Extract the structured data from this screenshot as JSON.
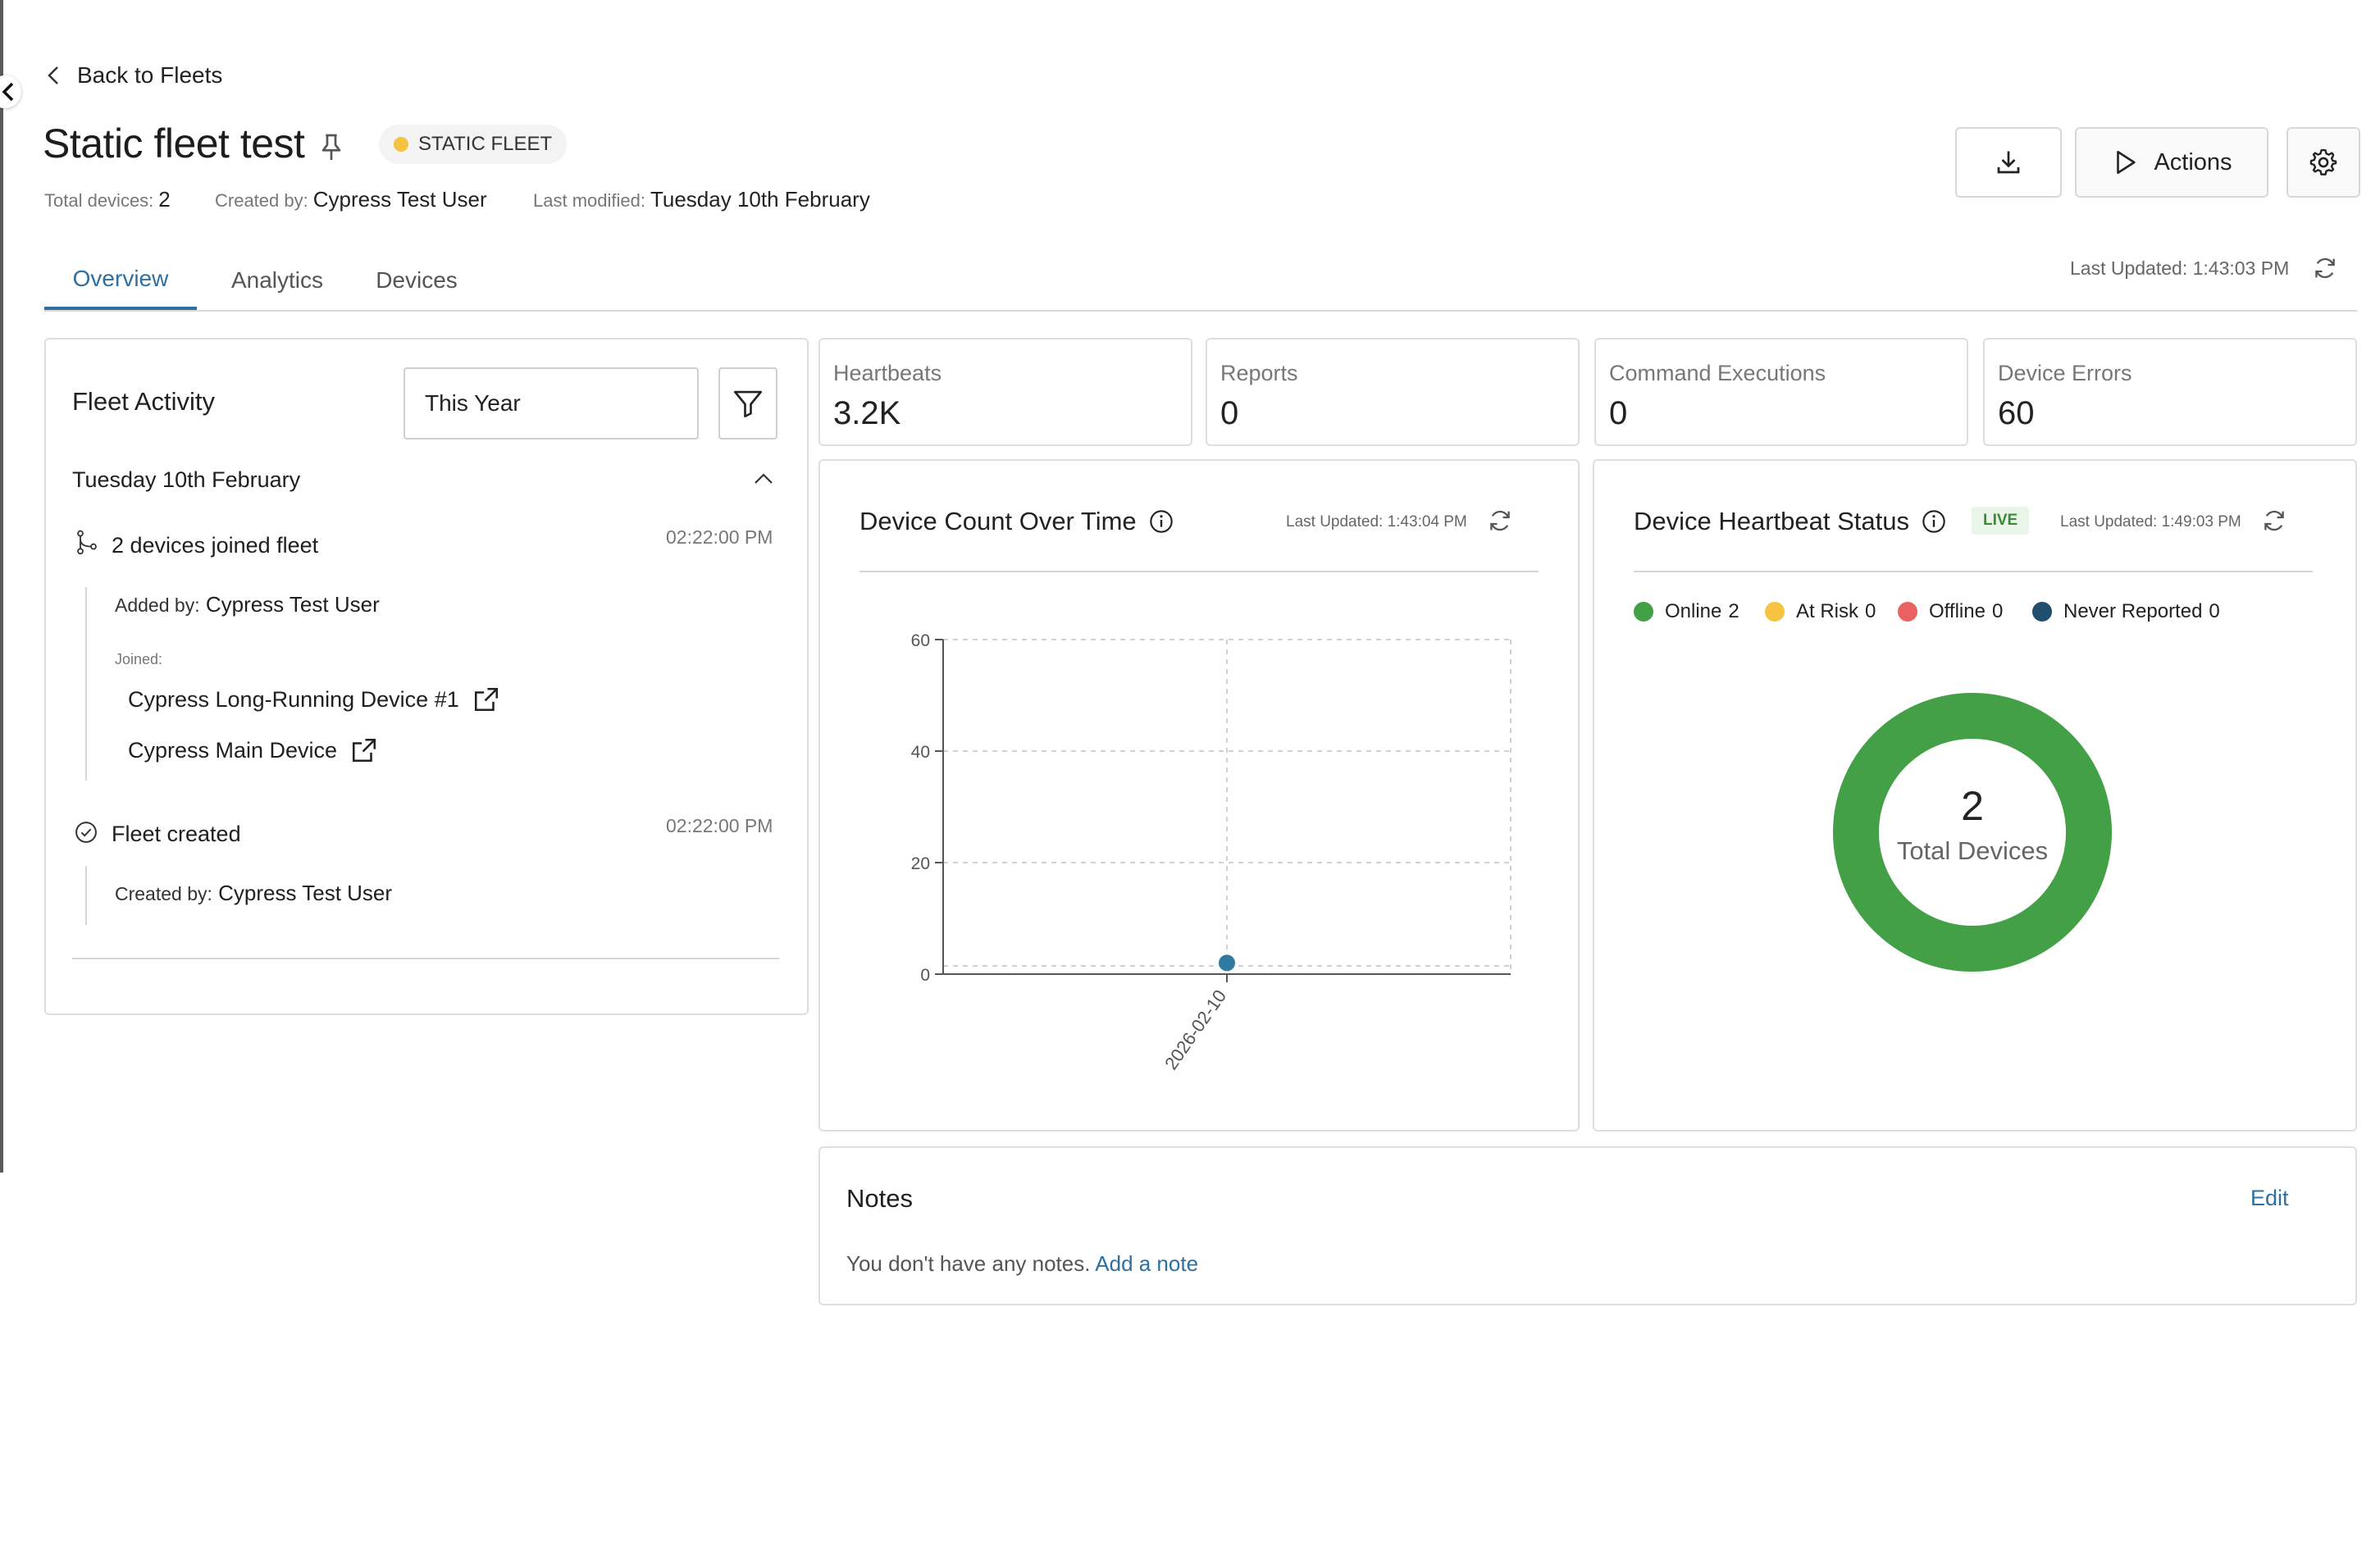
{
  "nav": {
    "back_label": "Back to Fleets"
  },
  "header": {
    "title": "Static fleet test",
    "badge": "STATIC FLEET",
    "badge_color": "#f5c242",
    "meta": [
      {
        "label": "Total devices:",
        "value": "2"
      },
      {
        "label": "Created by:",
        "value": "Cypress Test User"
      },
      {
        "label": "Last modified:",
        "value": "Tuesday 10th February"
      }
    ],
    "actions_label": "Actions"
  },
  "tabs": [
    {
      "label": "Overview",
      "active": true
    },
    {
      "label": "Analytics",
      "active": false
    },
    {
      "label": "Devices",
      "active": false
    }
  ],
  "last_updated": "Last Updated: 1:43:03 PM",
  "fleet_activity": {
    "title": "Fleet Activity",
    "period": "This Year",
    "date_group": "Tuesday 10th February",
    "events": [
      {
        "text": "2 devices joined fleet",
        "time": "02:22:00 PM",
        "added_by_label": "Added by:",
        "added_by": "Cypress Test User",
        "joined_label": "Joined:",
        "devices": [
          "Cypress Long-Running Device #1",
          "Cypress Main Device"
        ]
      },
      {
        "text": "Fleet created",
        "time": "02:22:00 PM",
        "created_by_label": "Created by:",
        "created_by": "Cypress Test User"
      }
    ]
  },
  "stats": [
    {
      "label": "Heartbeats",
      "value": "3.2K"
    },
    {
      "label": "Reports",
      "value": "0"
    },
    {
      "label": "Command Executions",
      "value": "0"
    },
    {
      "label": "Device Errors",
      "value": "60"
    }
  ],
  "device_count_chart": {
    "title": "Device Count Over Time",
    "last_updated": "Last Updated: 1:43:04 PM"
  },
  "chart_data": {
    "type": "scatter",
    "title": "Device Count Over Time",
    "x": [
      "2026-02-10"
    ],
    "y": [
      2
    ],
    "y_ticks": [
      "60",
      "40",
      "20",
      "0"
    ],
    "ylim": [
      0,
      60
    ],
    "grid": true,
    "point_color": "#2f7aa0"
  },
  "heartbeat_status": {
    "title": "Device Heartbeat Status",
    "live_label": "LIVE",
    "last_updated": "Last Updated: 1:49:03 PM",
    "legend": [
      {
        "label": "Online",
        "count": "2",
        "color": "#43a047"
      },
      {
        "label": "At Risk",
        "count": "0",
        "color": "#f5c242"
      },
      {
        "label": "Offline",
        "count": "0",
        "color": "#e96161"
      },
      {
        "label": "Never Reported",
        "count": "0",
        "color": "#1f4e6e"
      }
    ],
    "total": "2",
    "total_label": "Total Devices"
  },
  "notes": {
    "title": "Notes",
    "edit_label": "Edit",
    "empty_text": "You don't have any notes.",
    "add_label": "Add a note"
  }
}
